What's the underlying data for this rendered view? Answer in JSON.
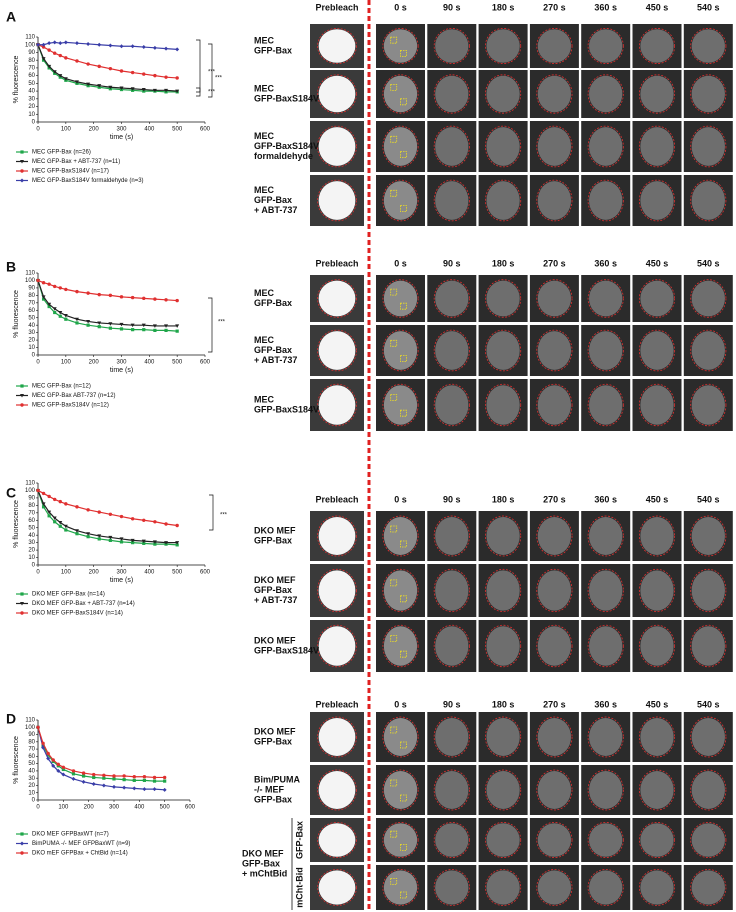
{
  "chart_data": [
    {
      "type": "line",
      "ylabel": "% fluorescence",
      "xlabel": "time (s)",
      "xlim": [
        0,
        600
      ],
      "ylim": [
        0,
        110
      ],
      "xticks": [
        0,
        100,
        200,
        300,
        400,
        500,
        600
      ],
      "yticks": [
        0,
        10,
        20,
        30,
        40,
        50,
        60,
        70,
        80,
        90,
        100,
        110
      ],
      "x": [
        0,
        20,
        40,
        60,
        80,
        100,
        140,
        180,
        220,
        260,
        300,
        340,
        380,
        420,
        460,
        500
      ],
      "series": [
        {
          "name": "MEC GFP-Bax (n=26)",
          "color": "#1fa64a",
          "marker": "square",
          "values": [
            100,
            80,
            70,
            63,
            58,
            54,
            50,
            47,
            45,
            43,
            42,
            41,
            40,
            40,
            39,
            39
          ]
        },
        {
          "name": "MEC GFP-Bax + ABT-737 (n=11)",
          "color": "#222222",
          "marker": "triangle",
          "values": [
            100,
            82,
            72,
            65,
            60,
            56,
            52,
            49,
            47,
            45,
            44,
            43,
            42,
            41,
            41,
            40
          ]
        },
        {
          "name": "MEC GFP-BaxS184V (n=17)",
          "color": "#e03030",
          "marker": "circle",
          "values": [
            100,
            97,
            93,
            89,
            86,
            83,
            79,
            75,
            72,
            69,
            66,
            64,
            62,
            60,
            58,
            57
          ]
        },
        {
          "name": "MEC GFP-BaxS184V formaldehyde (n=3)",
          "color": "#3a3ea8",
          "marker": "diamond",
          "values": [
            100,
            100,
            102,
            103,
            102,
            103,
            102,
            101,
            100,
            99,
            98,
            98,
            97,
            96,
            95,
            94
          ]
        }
      ],
      "annotations": [
        "***",
        "***",
        "***"
      ]
    },
    {
      "type": "line",
      "ylabel": "% fluorescence",
      "xlabel": "time (s)",
      "xlim": [
        0,
        600
      ],
      "ylim": [
        0,
        110
      ],
      "xticks": [
        0,
        100,
        200,
        300,
        400,
        500,
        600
      ],
      "yticks": [
        0,
        10,
        20,
        30,
        40,
        50,
        60,
        70,
        80,
        90,
        100,
        110
      ],
      "x": [
        0,
        20,
        40,
        60,
        80,
        100,
        140,
        180,
        220,
        260,
        300,
        340,
        380,
        420,
        460,
        500
      ],
      "series": [
        {
          "name": "MEC GFP-Bax (n=12)",
          "color": "#1fa64a",
          "marker": "square",
          "values": [
            100,
            75,
            65,
            57,
            52,
            48,
            43,
            40,
            38,
            36,
            35,
            34,
            34,
            33,
            33,
            32
          ]
        },
        {
          "name": "MEC GFP-Bax ABT-737 (n=12)",
          "color": "#222222",
          "marker": "triangle",
          "values": [
            100,
            78,
            68,
            62,
            57,
            53,
            48,
            45,
            43,
            42,
            41,
            40,
            40,
            39,
            39,
            39
          ]
        },
        {
          "name": "MEC GFP-BaxS184V (n=12)",
          "color": "#e03030",
          "marker": "circle",
          "values": [
            100,
            97,
            95,
            92,
            90,
            88,
            85,
            83,
            81,
            80,
            78,
            77,
            76,
            75,
            74,
            73
          ]
        }
      ],
      "annotations": [
        "***"
      ]
    },
    {
      "type": "line",
      "ylabel": "% fluorescence",
      "xlabel": "time (s)",
      "xlim": [
        0,
        600
      ],
      "ylim": [
        0,
        110
      ],
      "xticks": [
        0,
        100,
        200,
        300,
        400,
        500,
        600
      ],
      "yticks": [
        0,
        10,
        20,
        30,
        40,
        50,
        60,
        70,
        80,
        90,
        100,
        110
      ],
      "x": [
        0,
        20,
        40,
        60,
        80,
        100,
        140,
        180,
        220,
        260,
        300,
        340,
        380,
        420,
        460,
        500
      ],
      "series": [
        {
          "name": "DKO MEF GFP-Bax (n=14)",
          "color": "#1fa64a",
          "marker": "square",
          "values": [
            100,
            78,
            66,
            58,
            52,
            47,
            42,
            38,
            35,
            33,
            31,
            30,
            29,
            28,
            28,
            27
          ]
        },
        {
          "name": "DKO MEF GFP-Bax + ABT-737 (n=14)",
          "color": "#222222",
          "marker": "triangle",
          "values": [
            100,
            82,
            71,
            63,
            57,
            52,
            46,
            42,
            39,
            37,
            35,
            33,
            32,
            31,
            30,
            30
          ]
        },
        {
          "name": "DKO MEF GFP-BaxS184V (n=14)",
          "color": "#e03030",
          "marker": "circle",
          "values": [
            100,
            96,
            92,
            88,
            85,
            82,
            78,
            74,
            71,
            68,
            65,
            62,
            60,
            58,
            55,
            53
          ]
        }
      ],
      "annotations": [
        "***"
      ]
    },
    {
      "type": "line",
      "ylabel": "% fluorescence",
      "xlim": [
        0,
        600
      ],
      "ylim": [
        0,
        110
      ],
      "xticks": [
        0,
        100,
        200,
        300,
        400,
        500,
        600
      ],
      "yticks": [
        0,
        10,
        20,
        30,
        40,
        50,
        60,
        70,
        80,
        90,
        100,
        110
      ],
      "x": [
        0,
        20,
        40,
        60,
        80,
        100,
        140,
        180,
        220,
        260,
        300,
        340,
        380,
        420,
        460,
        500
      ],
      "series": [
        {
          "name": "DKO MEF GFPBaxWT (n=7)",
          "color": "#1fa64a",
          "marker": "square",
          "values": [
            100,
            75,
            62,
            53,
            47,
            42,
            36,
            33,
            31,
            30,
            29,
            28,
            27,
            27,
            26,
            26
          ]
        },
        {
          "name": "BimPUMA -/- MEF GFPBaxWT (n=9)",
          "color": "#3a3ea8",
          "marker": "diamond",
          "values": [
            100,
            72,
            57,
            47,
            40,
            35,
            29,
            25,
            22,
            20,
            18,
            17,
            16,
            15,
            15,
            14
          ]
        },
        {
          "name": "DKO mEF GFPBax + ChtBid (n=14)",
          "color": "#e03030",
          "marker": "circle",
          "values": [
            100,
            78,
            64,
            55,
            49,
            45,
            40,
            37,
            35,
            34,
            33,
            33,
            32,
            32,
            31,
            31
          ]
        }
      ],
      "annotations": []
    }
  ],
  "panels": [
    {
      "letter": "A",
      "columns": [
        "Prebleach",
        "0 s",
        "90 s",
        "180 s",
        "270 s",
        "360 s",
        "450 s",
        "540 s"
      ],
      "rows": [
        [
          "MEC",
          "GFP-Bax"
        ],
        [
          "MEC",
          "GFP-BaxS184V"
        ],
        [
          "MEC",
          "GFP-BaxS184V",
          "formaldehyde"
        ],
        [
          "MEC",
          "GFP-Bax",
          "+ ABT-737"
        ]
      ]
    },
    {
      "letter": "B",
      "columns": [
        "Prebleach",
        "0 s",
        "90 s",
        "180 s",
        "270 s",
        "360 s",
        "450 s",
        "540 s"
      ],
      "rows": [
        [
          "MEC",
          "GFP-Bax"
        ],
        [
          "MEC",
          "GFP-Bax",
          "+ ABT-737"
        ],
        [
          "MEC",
          "GFP-BaxS184V"
        ]
      ]
    },
    {
      "letter": "C",
      "columns": [
        "Prebleach",
        "0 s",
        "90 s",
        "180 s",
        "270 s",
        "360 s",
        "450 s",
        "540 s"
      ],
      "rows": [
        [
          "DKO MEF",
          "GFP-Bax"
        ],
        [
          "DKO MEF",
          "GFP-Bax",
          "+ ABT-737"
        ],
        [
          "DKO MEF",
          "GFP-BaxS184V"
        ]
      ]
    },
    {
      "letter": "D",
      "columns": [
        "Prebleach",
        "0 s",
        "90 s",
        "180 s",
        "270 s",
        "360 s",
        "450 s",
        "540 s"
      ],
      "rows": [
        [
          "DKO MEF",
          "GFP-Bax"
        ],
        [
          "Bim/PUMA",
          "-/- MEF",
          "GFP-Bax"
        ],
        [
          "DKO MEF",
          "GFP-Bax",
          "+ mChtBid"
        ]
      ],
      "channels": [
        "GFP-Bax",
        "mCht-Bid"
      ]
    }
  ]
}
